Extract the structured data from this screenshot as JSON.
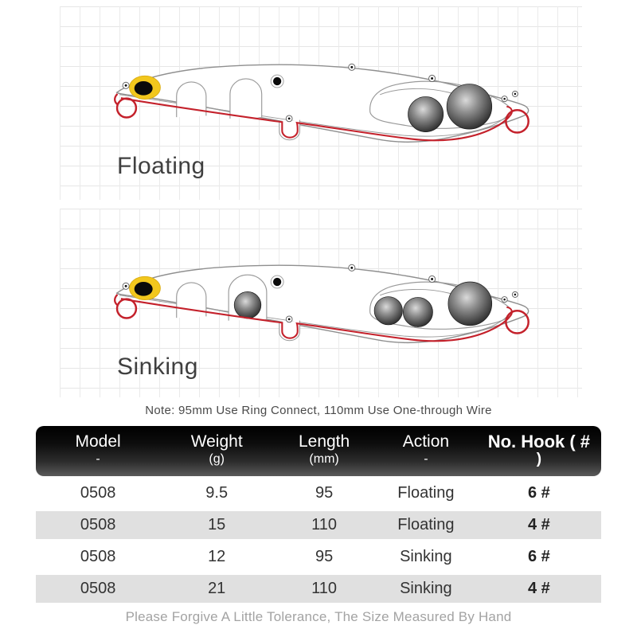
{
  "diagrams": {
    "floating": {
      "label": "Floating",
      "variant": "floating",
      "rear_ball_count": 2,
      "mid_ball_count": 0
    },
    "sinking": {
      "label": "Sinking",
      "variant": "sinking",
      "rear_ball_count": 3,
      "mid_ball_count": 1
    }
  },
  "note": "Note: 95mm Use Ring Connect, 110mm Use One-through Wire",
  "table": {
    "columns": [
      {
        "label": "Model",
        "sub": "-"
      },
      {
        "label": "Weight",
        "sub": "(g)"
      },
      {
        "label": "Length",
        "sub": "(mm)"
      },
      {
        "label": "Action",
        "sub": "-"
      },
      {
        "label": "No. Hook ( #",
        "sub": ")"
      }
    ],
    "rows": [
      [
        "0508",
        "9.5",
        "95",
        "Floating",
        "6 #"
      ],
      [
        "0508",
        "15",
        "110",
        "Floating",
        "4 #"
      ],
      [
        "0508",
        "12",
        "95",
        "Sinking",
        "6 #"
      ],
      [
        "0508",
        "21",
        "110",
        "Sinking",
        "4 #"
      ]
    ]
  },
  "footer": "Please Forgive A Little Tolerance, The Size Measured By Hand",
  "colors": {
    "wire_red": "#c4212b",
    "eye_yellow": "#f2c71d",
    "outline_gray": "#8f8f8f",
    "detail_gray": "#999999",
    "stripe_gray": "#e0e0e0",
    "header_top": "#000000",
    "header_bottom": "#5a5a5a",
    "grid_line": "#eaeaea"
  }
}
